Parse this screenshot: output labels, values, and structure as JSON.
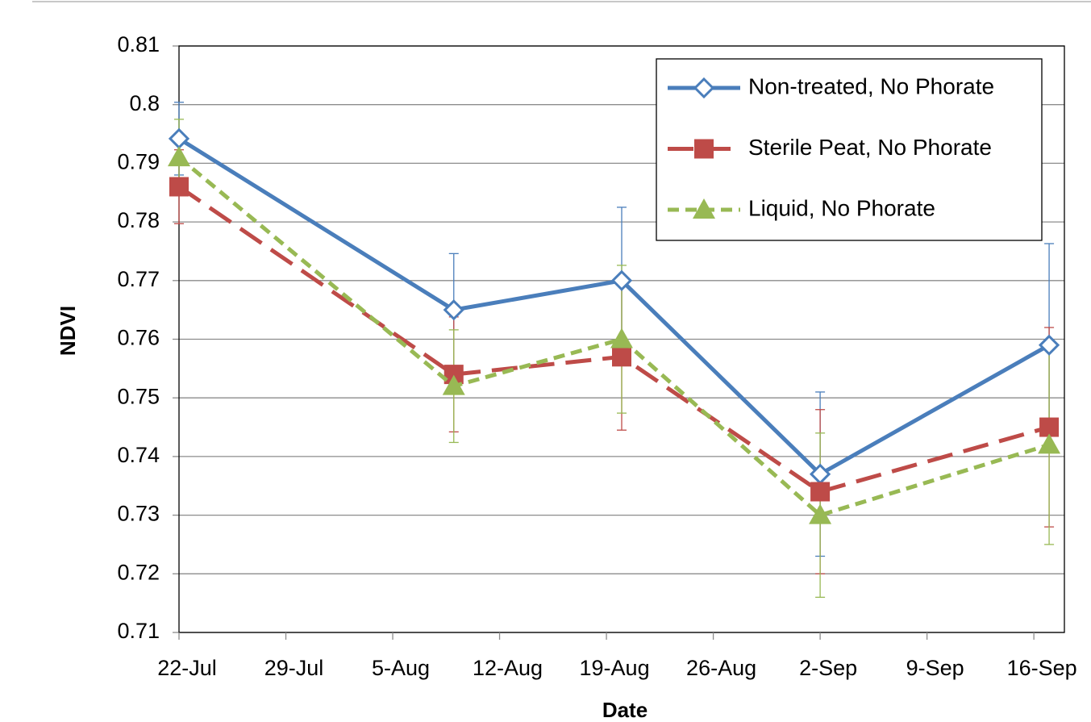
{
  "chart_data": {
    "type": "line",
    "x_label": "Date",
    "y_label": "NDVI",
    "x": [
      "22-Jul",
      "9-Aug",
      "20-Aug",
      "2-Sep",
      "17-Sep"
    ],
    "series": [
      {
        "name": "Non-treated, No Phorate",
        "color": "#4a7ebb",
        "marker": "diamond",
        "dash": "solid",
        "values": [
          0.7942,
          0.765,
          0.77,
          0.737,
          0.759
        ],
        "errors": [
          0.0062,
          0.0096,
          0.0125,
          0.014,
          0.0173
        ]
      },
      {
        "name": "Sterile Peat, No Phorate",
        "color": "#be4b48",
        "marker": "square",
        "dash": "long",
        "values": [
          0.786,
          0.754,
          0.757,
          0.734,
          0.745
        ],
        "errors": [
          0.0063,
          0.0098,
          0.0125,
          0.014,
          0.017
        ]
      },
      {
        "name": "Liquid, No Phorate",
        "color": "#98b954",
        "marker": "triangle",
        "dash": "short",
        "values": [
          0.791,
          0.752,
          0.76,
          0.73,
          0.742
        ],
        "errors": [
          0.0065,
          0.0096,
          0.0126,
          0.014,
          0.017
        ]
      }
    ],
    "xlim": [
      "22-Jul",
      "18-Sep"
    ],
    "xticks": [
      "22-Jul",
      "29-Jul",
      "5-Aug",
      "12-Aug",
      "19-Aug",
      "26-Aug",
      "2-Sep",
      "9-Sep",
      "16-Sep"
    ],
    "ylim": [
      0.71,
      0.81
    ],
    "yticks": [
      0.71,
      0.72,
      0.73,
      0.74,
      0.75,
      0.76,
      0.77,
      0.78,
      0.79,
      0.8,
      0.81
    ],
    "grid": true,
    "legend": "upper right"
  }
}
